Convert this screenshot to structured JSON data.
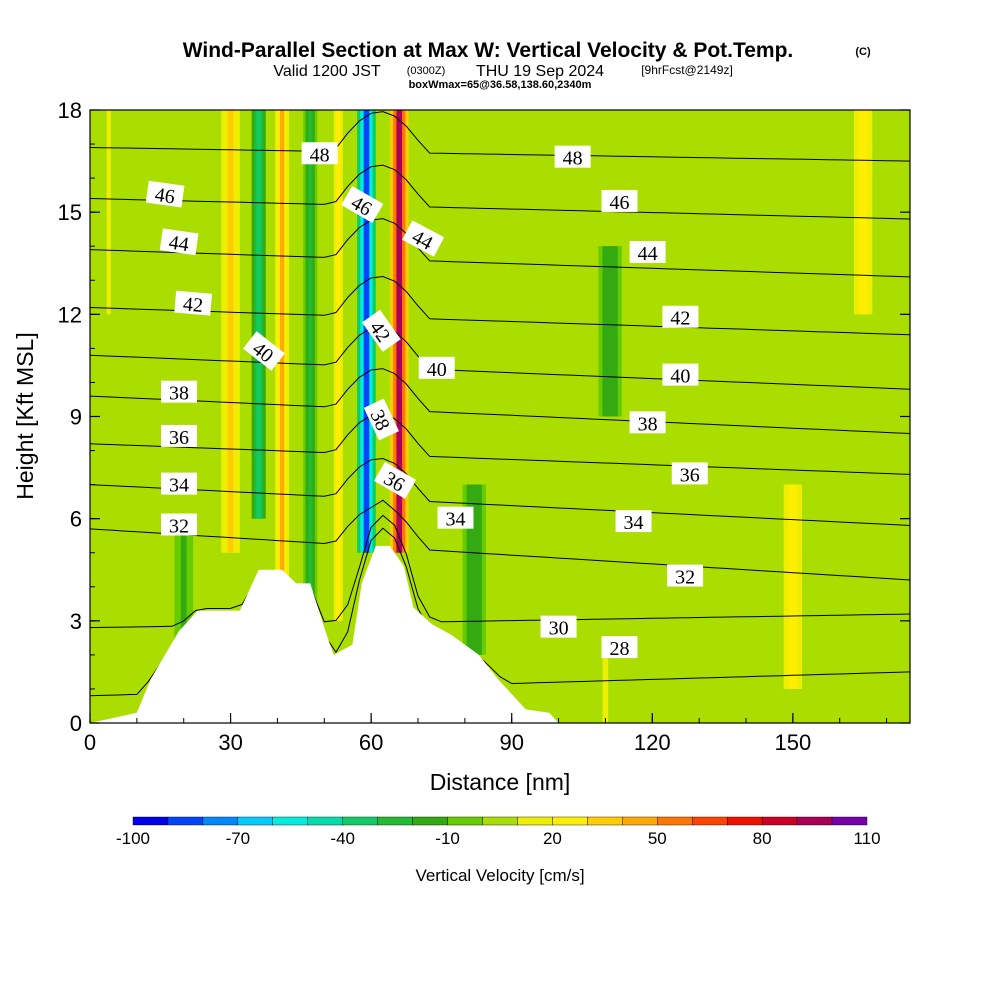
{
  "title": {
    "main": "Wind-Parallel Section at Max W: Vertical Velocity & Pot.Temp.",
    "copyright": "(C)",
    "valid_prefix": "Valid 1200 JST",
    "valid_zulu": "(0300Z)",
    "valid_date": "THU 19 Sep 2024",
    "forecast": "[9hrFcst@2149z]",
    "box": "boxWmax=65@36.58,138.60,2340m"
  },
  "chart_data": {
    "type": "heatmap",
    "xlabel": "Distance [nm]",
    "ylabel": "Height [Kft MSL]",
    "xlim": [
      0,
      175
    ],
    "ylim": [
      0,
      18
    ],
    "xticks": [
      0,
      30,
      60,
      90,
      120,
      150
    ],
    "yticks": [
      0,
      3,
      6,
      9,
      12,
      15,
      18
    ],
    "colorbar": {
      "label": "Vertical Velocity [cm/s]",
      "tick_labels": [
        "-100",
        "-70",
        "-40",
        "-10",
        "20",
        "50",
        "80",
        "110"
      ],
      "tick_values": [
        -100,
        -70,
        -40,
        -10,
        20,
        50,
        80,
        110
      ],
      "levels": [
        -100,
        -90,
        -80,
        -70,
        -60,
        -50,
        -40,
        -30,
        -20,
        -10,
        0,
        10,
        20,
        30,
        40,
        50,
        60,
        70,
        80,
        90,
        100,
        110
      ],
      "colors": [
        "#0000ee",
        "#0044ff",
        "#0088ff",
        "#00ccff",
        "#00eedd",
        "#00ddaa",
        "#11cc66",
        "#22bb33",
        "#33aa11",
        "#66cc00",
        "#aadd00",
        "#eeee00",
        "#ffee00",
        "#ffcc00",
        "#ffaa00",
        "#ff7700",
        "#ff4400",
        "#ee1100",
        "#cc0022",
        "#aa0055",
        "#7700aa"
      ]
    },
    "vv_background": 0,
    "vv_bands": [
      {
        "x": 4,
        "w": 3,
        "v": 15,
        "y0": 12,
        "y1": 18
      },
      {
        "x": 20,
        "w": 4,
        "v": -15,
        "y0": 0,
        "y1": 6
      },
      {
        "x": 30,
        "w": 4,
        "v": 30,
        "y0": 5,
        "y1": 18
      },
      {
        "x": 36,
        "w": 3,
        "v": -40,
        "y0": 6,
        "y1": 18
      },
      {
        "x": 41,
        "w": 3,
        "v": 40,
        "y0": 4,
        "y1": 18
      },
      {
        "x": 47,
        "w": 3,
        "v": -25,
        "y0": 2,
        "y1": 18
      },
      {
        "x": 53,
        "w": 3,
        "v": 25,
        "y0": 3,
        "y1": 18
      },
      {
        "x": 59,
        "w": 4,
        "v": -90,
        "y0": 5,
        "y1": 18
      },
      {
        "x": 66,
        "w": 4,
        "v": 95,
        "y0": 5,
        "y1": 18
      },
      {
        "x": 82,
        "w": 5,
        "v": -20,
        "y0": 2,
        "y1": 7
      },
      {
        "x": 111,
        "w": 5,
        "v": -20,
        "y0": 9,
        "y1": 14
      },
      {
        "x": 150,
        "w": 6,
        "v": 20,
        "y0": 1,
        "y1": 7
      },
      {
        "x": 165,
        "w": 6,
        "v": 20,
        "y0": 12,
        "y1": 18
      },
      {
        "x": 110,
        "w": 4,
        "v": 15,
        "y0": 0,
        "y1": 2
      }
    ],
    "terrain": [
      [
        0,
        0
      ],
      [
        10,
        0.3
      ],
      [
        13,
        1.3
      ],
      [
        16,
        2
      ],
      [
        19,
        2.7
      ],
      [
        23,
        3.3
      ],
      [
        32,
        3.3
      ],
      [
        36,
        4.5
      ],
      [
        41,
        4.5
      ],
      [
        44,
        4.1
      ],
      [
        47,
        4.1
      ],
      [
        50,
        2.8
      ],
      [
        52,
        2
      ],
      [
        56,
        2.3
      ],
      [
        58,
        4.1
      ],
      [
        61,
        5.2
      ],
      [
        64,
        5.2
      ],
      [
        67,
        4.6
      ],
      [
        69,
        3.4
      ],
      [
        73,
        2.9
      ],
      [
        77,
        2.6
      ],
      [
        83,
        2
      ],
      [
        87,
        1.3
      ],
      [
        93,
        0.4
      ],
      [
        98,
        0.3
      ],
      [
        100,
        0
      ],
      [
        175,
        0
      ]
    ],
    "isentropes": [
      {
        "label": "28",
        "y_left": 0.8,
        "y_right": 1.5
      },
      {
        "label": "30",
        "y_left": 2.8,
        "y_right": 3.2
      },
      {
        "label": "32",
        "y_left": 5.7,
        "y_right": 4.2
      },
      {
        "label": "34",
        "y_left": 7.0,
        "y_right": 5.8
      },
      {
        "label": "36",
        "y_left": 8.2,
        "y_right": 7.3
      },
      {
        "label": "38",
        "y_left": 9.6,
        "y_right": 8.5
      },
      {
        "label": "40",
        "y_left": 10.8,
        "y_right": 9.8
      },
      {
        "label": "42",
        "y_left": 12.2,
        "y_right": 11.4
      },
      {
        "label": "44",
        "y_left": 13.9,
        "y_right": 13.1
      },
      {
        "label": "46",
        "y_left": 15.4,
        "y_right": 14.8
      },
      {
        "label": "48",
        "y_left": 16.9,
        "y_right": 16.5
      }
    ],
    "isentrope_labels": [
      {
        "text": "46",
        "x": 16,
        "y": 15.5,
        "rot": 8
      },
      {
        "text": "44",
        "x": 19,
        "y": 14.1,
        "rot": 8
      },
      {
        "text": "42",
        "x": 22,
        "y": 12.3,
        "rot": 5
      },
      {
        "text": "40",
        "x": 37,
        "y": 10.9,
        "rot": 38
      },
      {
        "text": "38",
        "x": 19,
        "y": 9.7,
        "rot": 0
      },
      {
        "text": "36",
        "x": 19,
        "y": 8.4,
        "rot": 0
      },
      {
        "text": "34",
        "x": 19,
        "y": 7.0,
        "rot": 0
      },
      {
        "text": "32",
        "x": 19,
        "y": 5.8,
        "rot": 0
      },
      {
        "text": "48",
        "x": 49,
        "y": 16.7,
        "rot": 0
      },
      {
        "text": "46",
        "x": 58,
        "y": 15.2,
        "rot": 30
      },
      {
        "text": "44",
        "x": 71,
        "y": 14.2,
        "rot": 28
      },
      {
        "text": "42",
        "x": 62,
        "y": 11.5,
        "rot": 55
      },
      {
        "text": "40",
        "x": 74,
        "y": 10.4,
        "rot": 0
      },
      {
        "text": "38",
        "x": 62,
        "y": 8.9,
        "rot": 65
      },
      {
        "text": "36",
        "x": 65,
        "y": 7.1,
        "rot": 30
      },
      {
        "text": "34",
        "x": 78,
        "y": 6.0,
        "rot": 0
      },
      {
        "text": "30",
        "x": 100,
        "y": 2.8,
        "rot": 0
      },
      {
        "text": "28",
        "x": 113,
        "y": 2.2,
        "rot": 0
      },
      {
        "text": "48",
        "x": 103,
        "y": 16.6,
        "rot": 0
      },
      {
        "text": "46",
        "x": 113,
        "y": 15.3,
        "rot": 0
      },
      {
        "text": "44",
        "x": 119,
        "y": 13.8,
        "rot": 0
      },
      {
        "text": "42",
        "x": 126,
        "y": 11.9,
        "rot": 0
      },
      {
        "text": "40",
        "x": 126,
        "y": 10.2,
        "rot": 0
      },
      {
        "text": "38",
        "x": 119,
        "y": 8.8,
        "rot": 0
      },
      {
        "text": "36",
        "x": 128,
        "y": 7.3,
        "rot": 0
      },
      {
        "text": "34",
        "x": 116,
        "y": 5.9,
        "rot": 0
      },
      {
        "text": "32",
        "x": 127,
        "y": 4.3,
        "rot": 0
      }
    ]
  }
}
